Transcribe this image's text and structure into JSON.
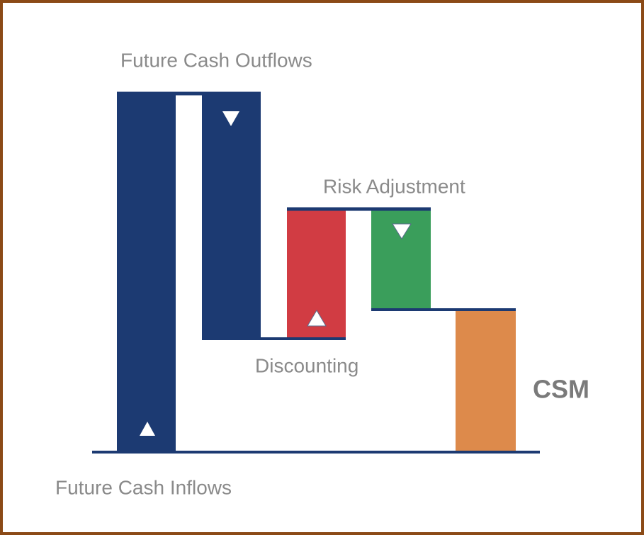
{
  "labels": {
    "outflows": "Future Cash Outflows",
    "risk": "Risk Adjustment",
    "discounting": "Discounting",
    "csm": "CSM",
    "inflows": "Future Cash Inflows"
  }
}
